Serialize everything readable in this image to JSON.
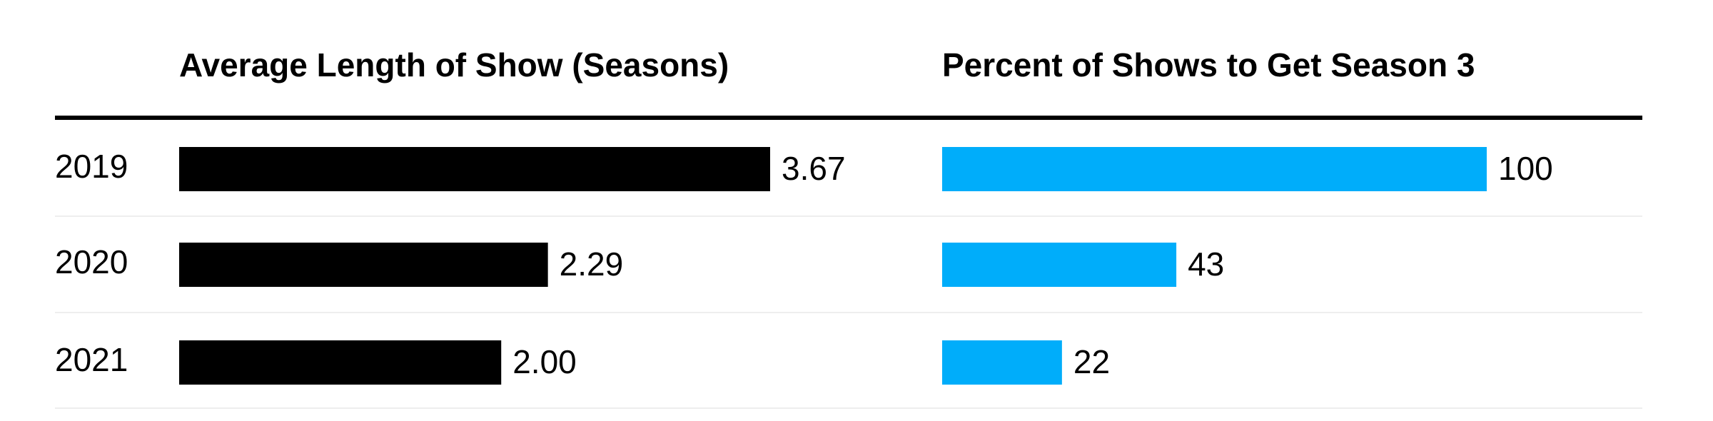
{
  "chart_data": [
    {
      "type": "bar",
      "title": "Average Length of Show (Seasons)",
      "categories": [
        "2019",
        "2020",
        "2021"
      ],
      "values": [
        3.67,
        2.29,
        2.0
      ],
      "value_labels": [
        "3.67",
        "2.29",
        "2.00"
      ],
      "color": "#000000"
    },
    {
      "type": "bar",
      "title": "Percent of Shows to Get Season 3",
      "values": [
        100,
        43,
        22
      ],
      "color": "#00adfa"
    }
  ]
}
